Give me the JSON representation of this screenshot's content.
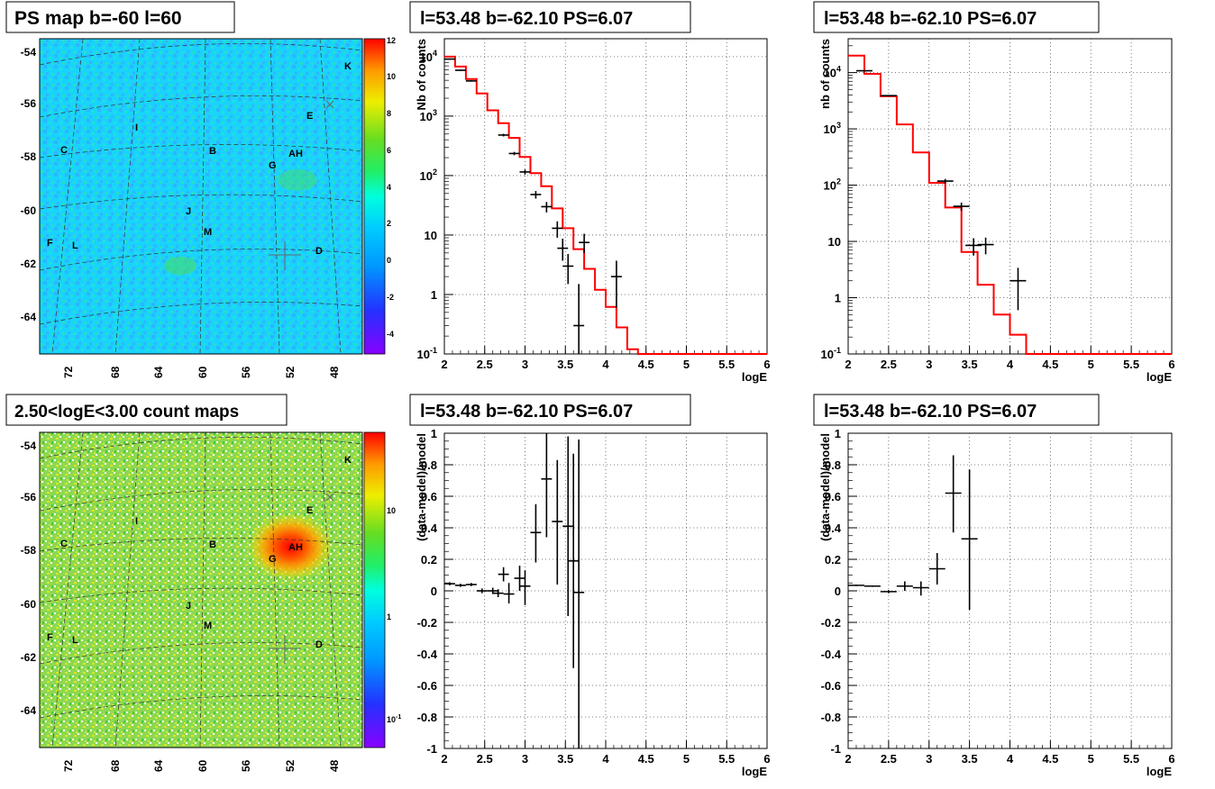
{
  "panels": {
    "ps_map": {
      "title": "PS map b=-60 l=60",
      "x_ticks": [
        "72",
        "68",
        "64",
        "60",
        "56",
        "52",
        "48"
      ],
      "y_ticks": [
        "-54",
        "-56",
        "-58",
        "-60",
        "-62",
        "-64"
      ],
      "palette_ticks": [
        "12",
        "10",
        "8",
        "6",
        "4",
        "2",
        "0",
        "-2",
        "-4"
      ],
      "sources": [
        "K",
        "E",
        "I",
        "C",
        "B",
        "AH",
        "G",
        "J",
        "M",
        "F",
        "L",
        "D"
      ]
    },
    "count_map": {
      "title": "2.50<logE<3.00 count maps",
      "x_ticks": [
        "72",
        "68",
        "64",
        "60",
        "56",
        "52",
        "48"
      ],
      "y_ticks": [
        "-54",
        "-56",
        "-58",
        "-60",
        "-62",
        "-64"
      ],
      "palette_ticks": [
        "10",
        "1"
      ],
      "palette_tick_low_base": "10",
      "palette_tick_low_exp": "-1",
      "sources": [
        "K",
        "E",
        "I",
        "C",
        "B",
        "AH",
        "G",
        "J",
        "M",
        "F",
        "L",
        "D"
      ]
    }
  },
  "chart_data": [
    {
      "id": "spectrum_left",
      "type": "line",
      "title": "l=53.48 b=-62.10 PS=6.07",
      "xlabel": "logE",
      "ylabel": "Nb of counts",
      "xlim": [
        2,
        6
      ],
      "ylim": [
        0.1,
        20000
      ],
      "y_log": true,
      "grid": true,
      "x_ticks": [
        "2",
        "2.5",
        "3",
        "3.5",
        "4",
        "4.5",
        "5",
        "5.5",
        "6"
      ],
      "y_ticks": [
        "10",
        "1",
        "10"
      ],
      "y_tick_exp_labels": [
        {
          "base": "10",
          "exp": "-1"
        },
        {
          "base": "10",
          "exp": "2"
        },
        {
          "base": "10",
          "exp": "3"
        },
        {
          "base": "10",
          "exp": "4"
        }
      ],
      "model_color": "#ff0000",
      "model_edges": [
        2.0,
        2.1333,
        2.2667,
        2.4,
        2.5333,
        2.6667,
        2.8,
        2.9333,
        3.0667,
        3.2,
        3.3333,
        3.4667,
        3.6,
        3.7333,
        3.8667,
        4.0,
        4.1333,
        4.2667,
        4.4,
        4.5333,
        4.6667,
        4.8,
        4.9333,
        5.0667,
        5.2,
        5.3333,
        5.4667,
        5.6,
        5.7333,
        5.8667,
        6.0
      ],
      "model_values": [
        10000,
        6800,
        4200,
        2400,
        1250,
        760,
        430,
        205,
        110,
        66,
        28,
        13,
        5.8,
        2.7,
        1.2,
        0.62,
        0.28,
        0.12,
        0.1,
        0.1,
        0.1,
        0.1,
        0.1,
        0.1,
        0.1,
        0.1,
        0.1,
        0.1,
        0.1,
        0.1
      ],
      "data_points": [
        {
          "x": 2.0667,
          "y": 9100,
          "ylo": 8900,
          "yhi": 9300,
          "xerr": 0.0667
        },
        {
          "x": 2.2,
          "y": 5900,
          "ylo": 5750,
          "yhi": 6050,
          "xerr": 0.0667
        },
        {
          "x": 2.3333,
          "y": 3900,
          "ylo": 3800,
          "yhi": 4000,
          "xerr": 0.0667
        },
        {
          "x": 2.7333,
          "y": 480,
          "ylo": 455,
          "yhi": 505,
          "xerr": 0.0667
        },
        {
          "x": 2.8667,
          "y": 235,
          "ylo": 220,
          "yhi": 250,
          "xerr": 0.0667
        },
        {
          "x": 3.0,
          "y": 115,
          "ylo": 104,
          "yhi": 126,
          "xerr": 0.0667
        },
        {
          "x": 3.1333,
          "y": 48,
          "ylo": 41,
          "yhi": 55,
          "xerr": 0.0667
        },
        {
          "x": 3.2667,
          "y": 30,
          "ylo": 24,
          "yhi": 36,
          "xerr": 0.0667
        },
        {
          "x": 3.4,
          "y": 13,
          "ylo": 9,
          "yhi": 17,
          "xerr": 0.0667
        },
        {
          "x": 3.5333,
          "y": 3,
          "ylo": 1.5,
          "yhi": 4.8,
          "xerr": 0.0667
        },
        {
          "x": 3.4667,
          "y": 6,
          "ylo": 3.7,
          "yhi": 8.7,
          "xerr": 0.0667
        },
        {
          "x": 3.6667,
          "y": 0.3,
          "ylo": 0.1,
          "yhi": 1.5,
          "xerr": 0.0667
        },
        {
          "x": 3.7333,
          "y": 7.5,
          "ylo": 5,
          "yhi": 10.5,
          "xerr": 0.0667
        },
        {
          "x": 4.1333,
          "y": 2,
          "ylo": 0.6,
          "yhi": 3.7,
          "xerr": 0.0667
        }
      ]
    },
    {
      "id": "spectrum_right",
      "type": "line",
      "title": "l=53.48 b=-62.10 PS=6.07",
      "xlabel": "logE",
      "ylabel": "nb of counts",
      "xlim": [
        2,
        6
      ],
      "ylim": [
        0.1,
        40000
      ],
      "y_log": true,
      "grid": true,
      "x_ticks": [
        "2",
        "2.5",
        "3",
        "3.5",
        "4",
        "4.5",
        "5",
        "5.5",
        "6"
      ],
      "y_ticks": [
        "10",
        "1",
        "10"
      ],
      "y_tick_exp_labels": [
        {
          "base": "10",
          "exp": "-1"
        },
        {
          "base": "10",
          "exp": "2"
        },
        {
          "base": "10",
          "exp": "3"
        },
        {
          "base": "10",
          "exp": "4"
        }
      ],
      "model_color": "#ff0000",
      "model_edges": [
        2.0,
        2.2,
        2.4,
        2.6,
        2.8,
        3.0,
        3.2,
        3.4,
        3.6,
        3.8,
        4.0,
        4.2,
        4.4,
        4.6,
        4.8,
        5.0,
        5.2,
        5.4,
        5.6,
        5.8,
        6.0
      ],
      "model_values": [
        20000,
        9500,
        3800,
        1200,
        380,
        110,
        40,
        6.5,
        1.7,
        0.5,
        0.22,
        0.1,
        0.1,
        0.1,
        0.1,
        0.1,
        0.1,
        0.1,
        0.1,
        0.1
      ],
      "data_points": [
        {
          "x": 2.2,
          "y": 10800,
          "ylo": 10500,
          "yhi": 11100,
          "xerr": 0.1
        },
        {
          "x": 2.5,
          "y": 3900,
          "ylo": 3800,
          "yhi": 4000,
          "xerr": 0.1
        },
        {
          "x": 3.2,
          "y": 118,
          "ylo": 107,
          "yhi": 129,
          "xerr": 0.1
        },
        {
          "x": 3.4,
          "y": 42,
          "ylo": 35,
          "yhi": 49,
          "xerr": 0.1
        },
        {
          "x": 3.55,
          "y": 8.5,
          "ylo": 5.6,
          "yhi": 11.4,
          "xerr": 0.1
        },
        {
          "x": 3.7,
          "y": 8.8,
          "ylo": 5.9,
          "yhi": 11.7,
          "xerr": 0.1
        },
        {
          "x": 4.1,
          "y": 2,
          "ylo": 0.6,
          "yhi": 3.4,
          "xerr": 0.1
        }
      ]
    },
    {
      "id": "residual_left",
      "type": "scatter",
      "title": "l=53.48 b=-62.10 PS=6.07",
      "xlabel": "logE",
      "ylabel": "(data-model)/model",
      "xlim": [
        2,
        6
      ],
      "ylim": [
        -1,
        1
      ],
      "grid": true,
      "x_ticks": [
        "2",
        "2.5",
        "3",
        "3.5",
        "4",
        "4.5",
        "5",
        "5.5",
        "6"
      ],
      "y_ticks": [
        "-1",
        "-0.8",
        "-0.6",
        "-0.4",
        "-0.2",
        "0",
        "0.2",
        "0.4",
        "0.6",
        "0.8",
        "1"
      ],
      "data_points": [
        {
          "x": 2.0667,
          "y": 0.045,
          "ylo": 0.035,
          "yhi": 0.055,
          "xerr": 0.0667
        },
        {
          "x": 2.2,
          "y": 0.035,
          "ylo": 0.025,
          "yhi": 0.045,
          "xerr": 0.0667
        },
        {
          "x": 2.3333,
          "y": 0.04,
          "ylo": 0.03,
          "yhi": 0.05,
          "xerr": 0.0667
        },
        {
          "x": 2.4667,
          "y": 0.0,
          "ylo": -0.015,
          "yhi": 0.015,
          "xerr": 0.0667
        },
        {
          "x": 2.6,
          "y": 0.0,
          "ylo": -0.02,
          "yhi": 0.02,
          "xerr": 0.0667
        },
        {
          "x": 2.6667,
          "y": -0.015,
          "ylo": -0.04,
          "yhi": 0.01,
          "xerr": 0.0667
        },
        {
          "x": 2.7333,
          "y": 0.105,
          "ylo": 0.06,
          "yhi": 0.15,
          "xerr": 0.0667
        },
        {
          "x": 2.8,
          "y": -0.02,
          "ylo": -0.08,
          "yhi": 0.05,
          "xerr": 0.0667
        },
        {
          "x": 2.9333,
          "y": 0.08,
          "ylo": 0.0,
          "yhi": 0.16,
          "xerr": 0.0667
        },
        {
          "x": 3.0,
          "y": 0.03,
          "ylo": -0.09,
          "yhi": 0.13,
          "xerr": 0.0667
        },
        {
          "x": 3.1333,
          "y": 0.37,
          "ylo": 0.18,
          "yhi": 0.55,
          "xerr": 0.0667
        },
        {
          "x": 3.2667,
          "y": 0.71,
          "ylo": 0.34,
          "yhi": 1.0,
          "xerr": 0.0667
        },
        {
          "x": 3.4,
          "y": 0.44,
          "ylo": 0.04,
          "yhi": 0.83,
          "xerr": 0.0667
        },
        {
          "x": 3.5333,
          "y": 0.41,
          "ylo": -0.16,
          "yhi": 0.98,
          "xerr": 0.0667
        },
        {
          "x": 3.6,
          "y": 0.19,
          "ylo": -0.49,
          "yhi": 0.87,
          "xerr": 0.0667
        },
        {
          "x": 3.6667,
          "y": -0.01,
          "ylo": -1.0,
          "yhi": 0.96,
          "xerr": 0.0667
        }
      ]
    },
    {
      "id": "residual_right",
      "type": "scatter",
      "title": "l=53.48 b=-62.10 PS=6.07",
      "xlabel": "logE",
      "ylabel": "(data-model)/model",
      "xlim": [
        2,
        6
      ],
      "ylim": [
        -1,
        1
      ],
      "grid": true,
      "x_ticks": [
        "2",
        "2.5",
        "3",
        "3.5",
        "4",
        "4.5",
        "5",
        "5.5",
        "6"
      ],
      "y_ticks": [
        "-1",
        "-0.8",
        "-0.6",
        "-0.4",
        "-0.2",
        "0",
        "0.2",
        "0.4",
        "0.6",
        "0.8",
        "1"
      ],
      "data_points": [
        {
          "x": 2.1,
          "y": 0.035,
          "ylo": 0.03,
          "yhi": 0.04,
          "xerr": 0.1
        },
        {
          "x": 2.3,
          "y": 0.03,
          "ylo": 0.025,
          "yhi": 0.035,
          "xerr": 0.1
        },
        {
          "x": 2.5,
          "y": -0.005,
          "ylo": -0.015,
          "yhi": 0.005,
          "xerr": 0.1
        },
        {
          "x": 2.7,
          "y": 0.03,
          "ylo": 0.0,
          "yhi": 0.06,
          "xerr": 0.1
        },
        {
          "x": 2.9,
          "y": 0.02,
          "ylo": -0.03,
          "yhi": 0.06,
          "xerr": 0.1
        },
        {
          "x": 3.1,
          "y": 0.14,
          "ylo": 0.04,
          "yhi": 0.24,
          "xerr": 0.1
        },
        {
          "x": 3.3,
          "y": 0.62,
          "ylo": 0.37,
          "yhi": 0.86,
          "xerr": 0.1
        },
        {
          "x": 3.5,
          "y": 0.33,
          "ylo": -0.12,
          "yhi": 0.77,
          "xerr": 0.1
        }
      ]
    }
  ]
}
